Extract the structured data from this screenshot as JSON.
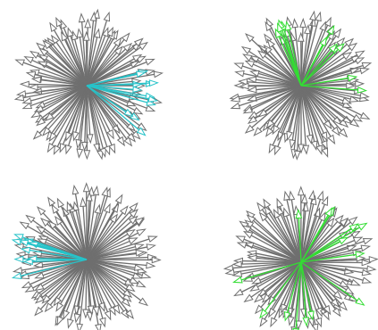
{
  "colors": {
    "background": "#ffffff",
    "base_arrow": "#6f6f6f",
    "arrow_face": "#ffffff",
    "highlight_cyan": "#27c3c9",
    "highlight_green": "#33dd33"
  },
  "chart_data": [
    {
      "type": "quiver",
      "panel": "top-left",
      "origin": [
        0,
        0
      ],
      "r_range": [
        0.68,
        1.0
      ],
      "n_base": 100,
      "highlight": {
        "color": "cyan",
        "angle_range_deg": [
          -55,
          15
        ],
        "count": 12
      }
    },
    {
      "type": "quiver",
      "panel": "top-right",
      "origin": [
        0,
        0
      ],
      "r_range": [
        0.68,
        1.0
      ],
      "n_base": 100,
      "highlight": {
        "color": "green",
        "angle_range_deg": [
          -10,
          120
        ],
        "count": 11
      }
    },
    {
      "type": "quiver",
      "panel": "bottom-left",
      "origin": [
        0,
        0
      ],
      "r_range": [
        0.68,
        1.0
      ],
      "n_base": 100,
      "highlight": {
        "color": "cyan",
        "angle_range_deg": [
          160,
          200
        ],
        "count": 10
      }
    },
    {
      "type": "quiver",
      "panel": "bottom-right",
      "origin": [
        0,
        0
      ],
      "r_range": [
        0.68,
        1.0
      ],
      "n_base": 100,
      "highlight": {
        "color": "green",
        "angle_range_deg": [
          0,
          360
        ],
        "count": 14
      }
    }
  ]
}
